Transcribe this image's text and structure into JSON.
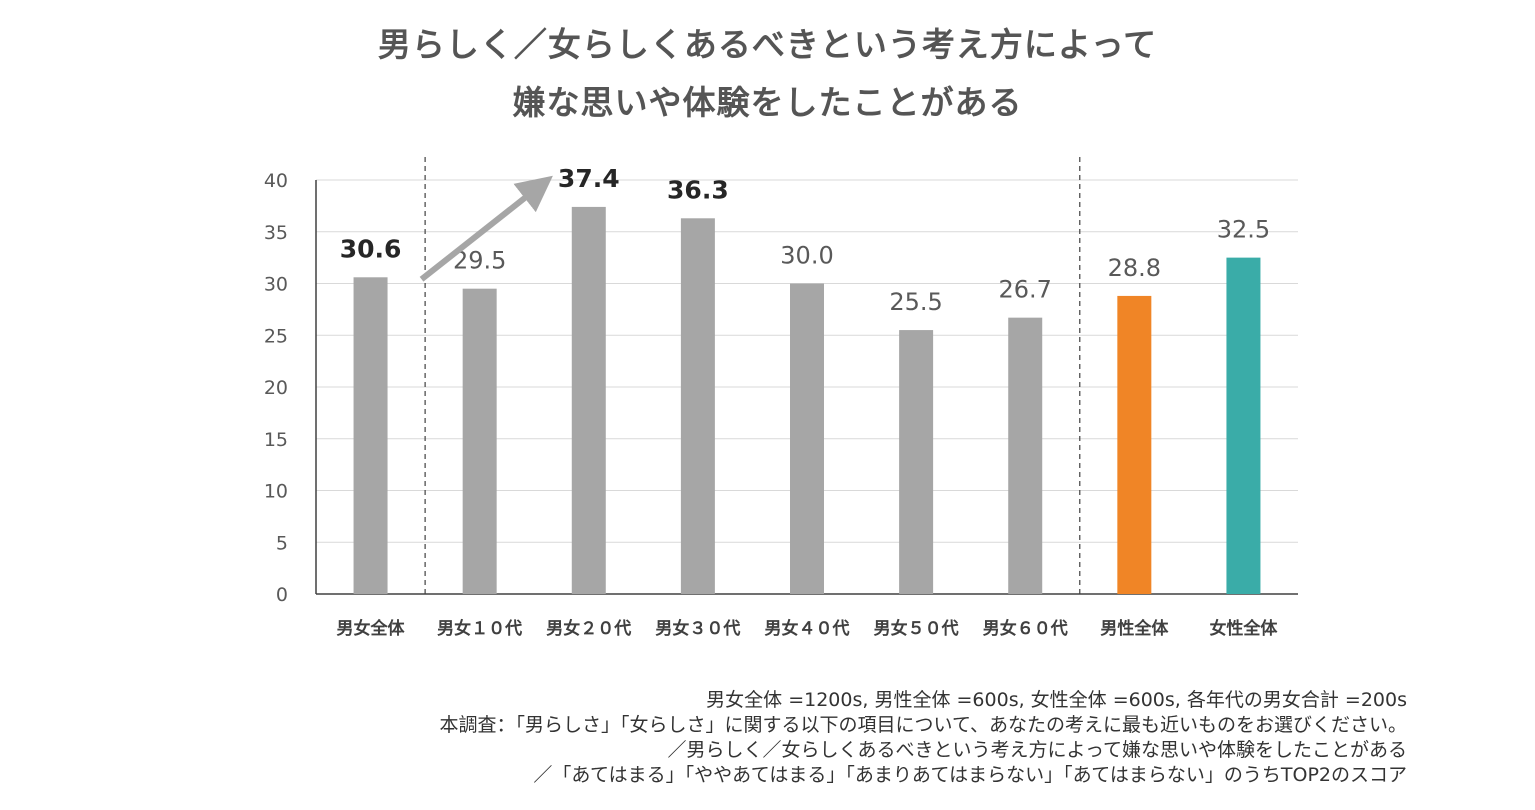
{
  "chart_data": {
    "type": "bar",
    "title_line1": "男らしく／女らしくあるべきという考え方によって",
    "title_line2": "嫌な思いや体験をしたことがある",
    "categories": [
      "男女全体",
      "男女１０代",
      "男女２０代",
      "男女３０代",
      "男女４０代",
      "男女５０代",
      "男女６０代",
      "男性全体",
      "女性全体"
    ],
    "values": [
      30.6,
      29.5,
      37.4,
      36.3,
      30.0,
      25.5,
      26.7,
      28.8,
      32.5
    ],
    "value_labels": [
      "30.6",
      "29.5",
      "37.4",
      "36.3",
      "30.0",
      "25.5",
      "26.7",
      "28.8",
      "32.5"
    ],
    "highlighted_labels": [
      0,
      2,
      3
    ],
    "colors": [
      "#a6a6a6",
      "#a6a6a6",
      "#a6a6a6",
      "#a6a6a6",
      "#a6a6a6",
      "#a6a6a6",
      "#a6a6a6",
      "#f08526",
      "#3aaca8"
    ],
    "ylim": [
      0,
      40
    ],
    "yticks": [
      0,
      5,
      10,
      15,
      20,
      25,
      30,
      35,
      40
    ],
    "xlabel": "",
    "ylabel": "",
    "grid": true,
    "legend": "none"
  },
  "notes": {
    "line1": "男女全体 =1200s, 男性全体 =600s, 女性全体 =600s, 各年代の男女合計 =200s",
    "line2": "本調査：「男らしさ」「女らしさ」に関する以下の項目について、あなたの考えに最も近いものをお選びください。",
    "line3": "／男らしく／女らしくあるべきという考え方によって嫌な思いや体験をしたことがある",
    "line4": "／「あてはまる」「ややあてはまる」「あまりあてはまらない」「あてはまらない」のうちTOP2のスコア"
  }
}
